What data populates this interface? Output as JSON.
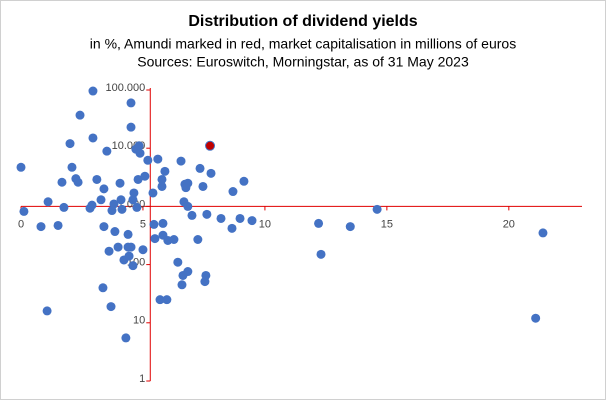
{
  "chart_data": {
    "type": "scatter",
    "title": "Distribution of dividend yields",
    "subtitle": "in %, Amundi marked in red, market capitalisation in millions of euros",
    "source": "Sources: Euroswitch, Morningstar, as of 31 May 2023",
    "xlim": [
      0,
      23
    ],
    "xticks": [
      0,
      5,
      10,
      15,
      20
    ],
    "ylim": [
      1,
      100000
    ],
    "log_y": true,
    "yticks": [
      1,
      10,
      100,
      {
        "value": 1000,
        "label": "1.000"
      },
      {
        "value": 10000,
        "label": "10.000"
      },
      {
        "value": 100000,
        "label": "100.000"
      }
    ],
    "x_axis_at": 1000,
    "y_axis_at": 5.3,
    "axis_color": "#e00000",
    "series": [
      {
        "color": "#4472c4",
        "x": [
          0,
          0.12,
          0.82,
          1.07,
          1.11,
          1.52,
          1.68,
          1.76,
          2.01,
          2.09,
          2.25,
          2.34,
          2.42,
          2.83,
          2.91,
          2.95,
          2.95,
          3.11,
          3.28,
          3.4,
          3.4,
          3.52,
          3.61,
          3.36,
          3.69,
          3.73,
          3.81,
          3.85,
          3.98,
          4.06,
          4.1,
          4.14,
          4.22,
          4.3,
          4.39,
          4.39,
          4.43,
          4.51,
          4.51,
          4.51,
          4.59,
          4.59,
          4.63,
          4.71,
          4.75,
          4.8,
          4.84,
          4.88,
          5.0,
          5.08,
          5.2,
          5.41,
          5.45,
          5.49,
          5.61,
          5.7,
          5.78,
          5.78,
          5.82,
          5.82,
          5.9,
          5.98,
          6.02,
          6.27,
          6.43,
          6.56,
          6.64,
          6.68,
          6.72,
          6.76,
          6.84,
          6.84,
          6.6,
          6.84,
          7.01,
          7.25,
          7.34,
          7.46,
          7.54,
          7.58,
          7.62,
          7.79,
          8.2,
          8.69,
          8.65,
          8.98,
          9.14,
          9.47,
          12.2,
          12.3,
          13.5,
          14.6,
          21.1,
          21.4
        ],
        "values": [
          4700,
          820,
          450,
          16,
          1200,
          470,
          2600,
          960,
          12000,
          4700,
          3000,
          2600,
          37000,
          930,
          1050,
          96000,
          15000,
          2900,
          1300,
          2000,
          450,
          8900,
          170,
          40,
          19,
          850,
          1100,
          370,
          200,
          2500,
          1300,
          890,
          120,
          5.5,
          330,
          200,
          140,
          60000,
          23000,
          200,
          96,
          1300,
          1700,
          9600,
          960,
          2900,
          11000,
          8200,
          180,
          3300,
          6200,
          1700,
          490,
          280,
          6500,
          25,
          2900,
          2200,
          320,
          510,
          4000,
          25,
          260,
          270,
          110,
          6000,
          65,
          1200,
          2400,
          2100,
          1000,
          2500,
          45,
          76,
          700,
          270,
          4500,
          2200,
          51,
          65,
          730,
          3700,
          620,
          1800,
          420,
          620,
          2700,
          570,
          510,
          150,
          450,
          890,
          12,
          350
        ]
      },
      {
        "color": "#c00000",
        "x": [
          7.75
        ],
        "values": [
          11000
        ]
      }
    ]
  }
}
